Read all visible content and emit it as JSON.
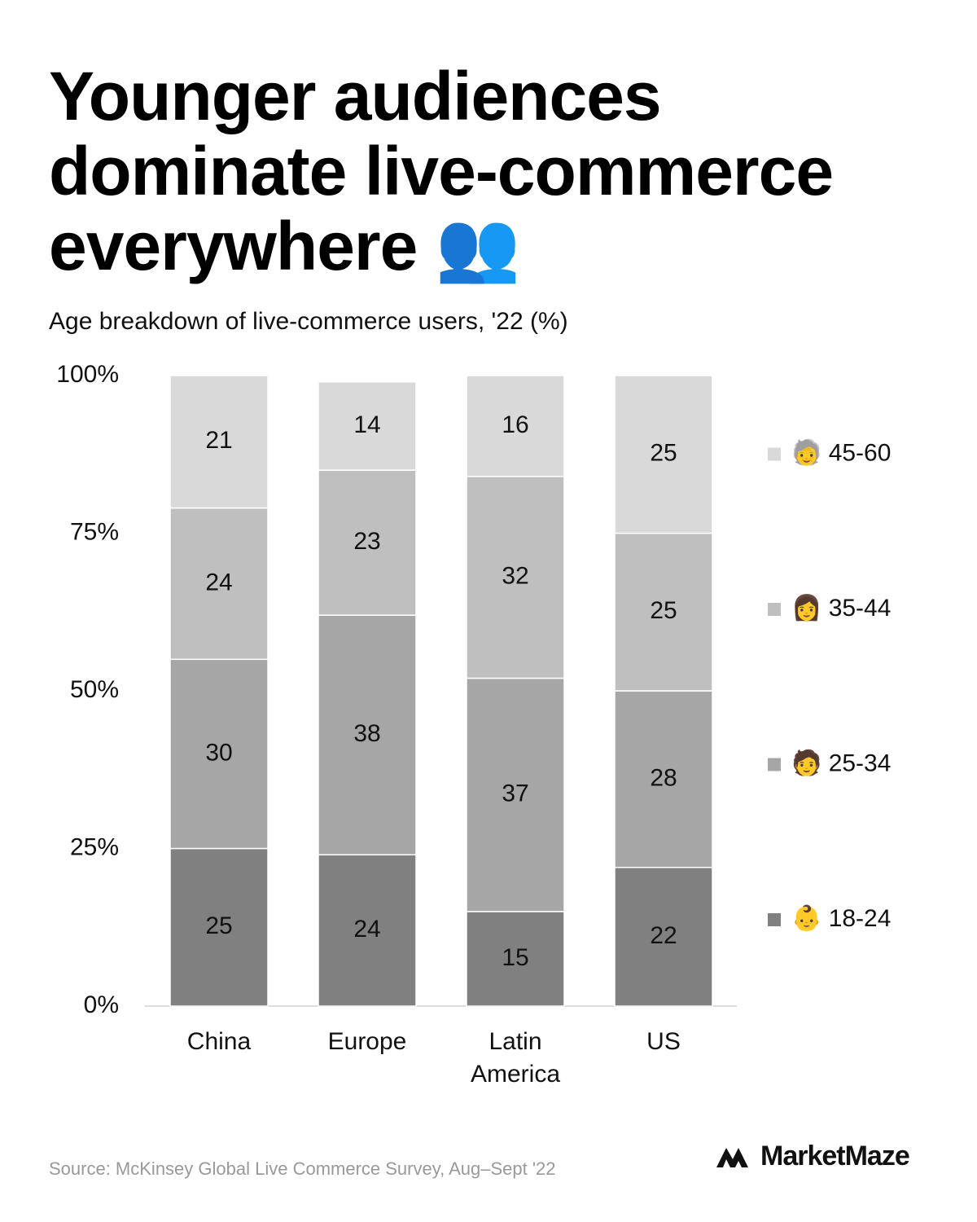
{
  "title": "Younger audiences dominate live-commerce everywhere 👥",
  "source": "Source: McKinsey Global Live Commerce Survey, Aug–Sept '22",
  "brand": "MarketMaze",
  "chart_data": {
    "type": "stacked_bar",
    "subtitle": "Age breakdown of live-commerce users, '22 (%)",
    "categories": [
      "China",
      "Europe",
      "Latin America",
      "US"
    ],
    "series": [
      {
        "name": "👶 18-24",
        "color": "#808080",
        "values": [
          25,
          24,
          15,
          22
        ]
      },
      {
        "name": "🧑 25-34",
        "color": "#a6a6a6",
        "values": [
          30,
          38,
          37,
          28
        ]
      },
      {
        "name": "👩 35-44",
        "color": "#bfbfbf",
        "values": [
          24,
          23,
          32,
          25
        ]
      },
      {
        "name": "🧓 45-60",
        "color": "#d9d9d9",
        "values": [
          21,
          14,
          16,
          25
        ]
      }
    ],
    "ylim": [
      0,
      100
    ],
    "yticks": [
      {
        "value": 0,
        "label": "0%"
      },
      {
        "value": 25,
        "label": "25%"
      },
      {
        "value": 50,
        "label": "50%"
      },
      {
        "value": 75,
        "label": "75%"
      },
      {
        "value": 100,
        "label": "100%"
      }
    ],
    "legend": "right"
  }
}
